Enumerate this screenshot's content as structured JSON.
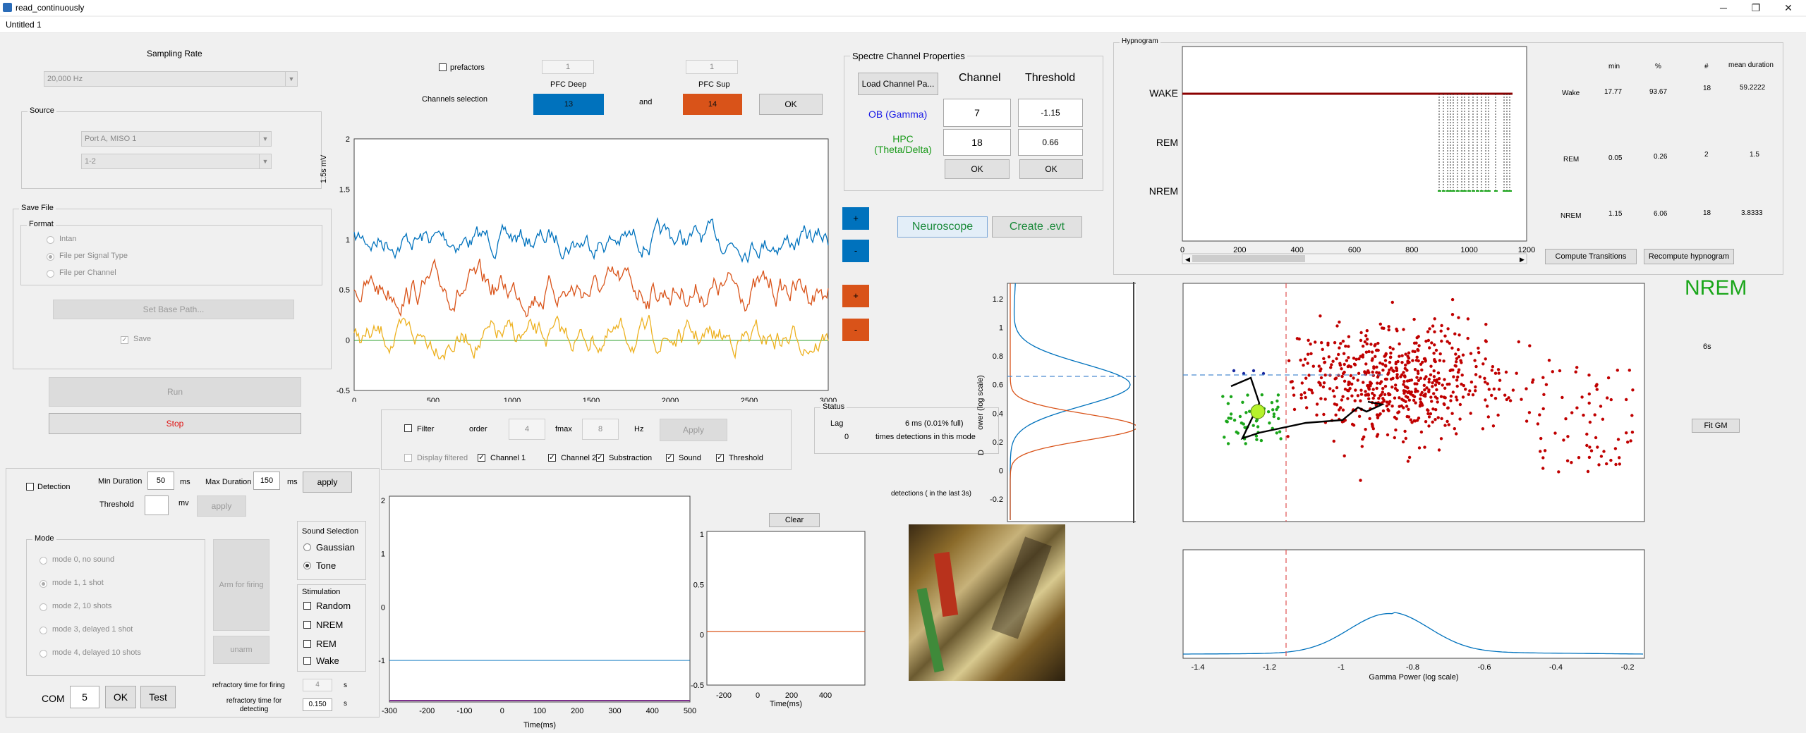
{
  "window": {
    "title": "read_continuously",
    "minimize": "─",
    "maximize": "❐",
    "close": "✕"
  },
  "menu": {
    "doc": "Untitled 1"
  },
  "sampling": {
    "title": "Sampling Rate",
    "rate": "20,000 Hz"
  },
  "source": {
    "title": "Source",
    "port": "Port A, MISO 1",
    "channels": "1-2"
  },
  "save_file": {
    "title": "Save File",
    "format_title": "Format",
    "options": [
      "Intan",
      "File per Signal Type",
      "File per Channel"
    ],
    "set_base_path": "Set Base Path...",
    "save_label": "Save"
  },
  "run": {
    "run": "Run",
    "stop": "Stop"
  },
  "channels": {
    "prefactors": "prefactors",
    "pfc_deep_prefactor": "1",
    "pfc_sup_prefactor": "1",
    "selection_label": "Channels selection",
    "pfc_deep_label": "PFC Deep",
    "pfc_sup_label": "PFC Sup",
    "pfc_deep_value": "13",
    "pfc_sup_value": "14",
    "and": "and",
    "ok": "OK"
  },
  "spectre": {
    "title": "Spectre Channel Properties",
    "load": "Load Channel Pa...",
    "channel_header": "Channel",
    "threshold_header": "Threshold",
    "ob_label": "OB (Gamma)",
    "hpc_label": "HPC (Theta/Delta)",
    "ob_channel": "7",
    "ob_threshold": "-1.15",
    "hpc_channel": "18",
    "hpc_threshold": "0.66",
    "ok1": "OK",
    "ok2": "OK"
  },
  "buttons": {
    "neuroscope": "Neuroscope",
    "create_evt": "Create .evt",
    "plus": "+",
    "minus": "-"
  },
  "hypnogram": {
    "title": "Hypnogram",
    "states": [
      "WAKE",
      "REM",
      "NREM"
    ],
    "xticks": [
      "0",
      "200",
      "400",
      "600",
      "800",
      "1000",
      "1200"
    ],
    "compute_transitions": "Compute Transitions",
    "recompute": "Recompute hypnogram"
  },
  "stats": {
    "headers": [
      "min",
      "%",
      "#",
      "mean duration"
    ],
    "rows": [
      {
        "name": "Wake",
        "min": "17.77",
        "pct": "93.67",
        "n": "18",
        "mean": "59.2222"
      },
      {
        "name": "REM",
        "min": "0.05",
        "pct": "0.26",
        "n": "2",
        "mean": "1.5"
      },
      {
        "name": "NREM",
        "min": "1.15",
        "pct": "6.06",
        "n": "18",
        "mean": "3.8333"
      }
    ]
  },
  "state_display": {
    "state": "NREM",
    "duration": "6s",
    "fit_gm": "Fit GM"
  },
  "signal_plot": {
    "ylabel": "1.5s mV",
    "yticks": [
      "2",
      "1.5",
      "1",
      "0.5",
      "0",
      "-0.5"
    ],
    "xticks": [
      "0",
      "500",
      "1000",
      "1500",
      "2000",
      "2500",
      "3000"
    ]
  },
  "filter": {
    "filter_label": "Filter",
    "order_label": "order",
    "order": "4",
    "fmax_label": "fmax",
    "fmax": "8",
    "hz": "Hz",
    "apply": "Apply",
    "display_filtered": "Display filtered",
    "channel1": "Channel 1",
    "channel2": "Channel 2",
    "substraction": "Substraction",
    "sound": "Sound",
    "threshold": "Threshold"
  },
  "status": {
    "title": "Status",
    "lag_label": "Lag",
    "lag_value": "6 ms (0.01% full)",
    "count": "0",
    "count_label": "times detections in this mode"
  },
  "detection": {
    "label": "Detection",
    "min_duration_label": "Min Duration",
    "min_duration": "50",
    "ms1": "ms",
    "max_duration_label": "Max Duration",
    "max_duration": "150",
    "ms2": "ms",
    "apply": "apply",
    "threshold_label": "Threshold",
    "threshold_value": "",
    "mv": "mv",
    "apply2": "apply"
  },
  "mode": {
    "title": "Mode",
    "options": [
      "mode 0, no sound",
      "mode 1, 1 shot",
      "mode 2, 10 shots",
      "mode 3, delayed 1 shot",
      "mode 4, delayed 10 shots"
    ],
    "arm": "Arm for firing",
    "unarm": "unarm"
  },
  "sound": {
    "title": "Sound Selection",
    "gaussian": "Gaussian",
    "tone": "Tone"
  },
  "stim": {
    "title": "Stimulation",
    "options": [
      "Random",
      "NREM",
      "REM",
      "Wake"
    ]
  },
  "com": {
    "label": "COM",
    "value": "5",
    "ok": "OK",
    "test": "Test"
  },
  "refractory": {
    "firing_label": "refractory time for firing",
    "firing": "4",
    "detecting_label": "refractory time for detecting",
    "detecting": "0.150",
    "s1": "s",
    "s2": "s"
  },
  "trigger_plot": {
    "yticks": [
      "2",
      "1",
      "0",
      "-1"
    ],
    "xticks": [
      "-300",
      "-200",
      "-100",
      "0",
      "100",
      "200",
      "300",
      "400",
      "500"
    ],
    "xlabel": "Time(ms)"
  },
  "avg_plot": {
    "clear": "Clear",
    "yticks": [
      "1",
      "0.5",
      "0",
      "-0.5"
    ],
    "xticks": [
      "-200",
      "0",
      "200",
      "400"
    ],
    "xlabel": "Time(ms)"
  },
  "detections": {
    "title": "detections ( in the last 3s)"
  },
  "dist_plot": {
    "ylabel": "ower (log scale)",
    "yticks": [
      "1.2",
      "1",
      "0.8",
      "0.6",
      "0.4",
      "0.2",
      "0",
      "-0.2"
    ],
    "mark": "D"
  },
  "gamma_plot": {
    "xticks": [
      "-1.4",
      "-1.2",
      "-1",
      "-0.8",
      "-0.6",
      "-0.4",
      "-0.2"
    ],
    "xlabel": "Gamma Power (log scale)"
  },
  "colors": {
    "blue": "#0072bd",
    "orange": "#d95319",
    "yellow": "#edb120",
    "red": "#c00000",
    "green": "#1aa61a",
    "dark_red": "#8b0000"
  }
}
